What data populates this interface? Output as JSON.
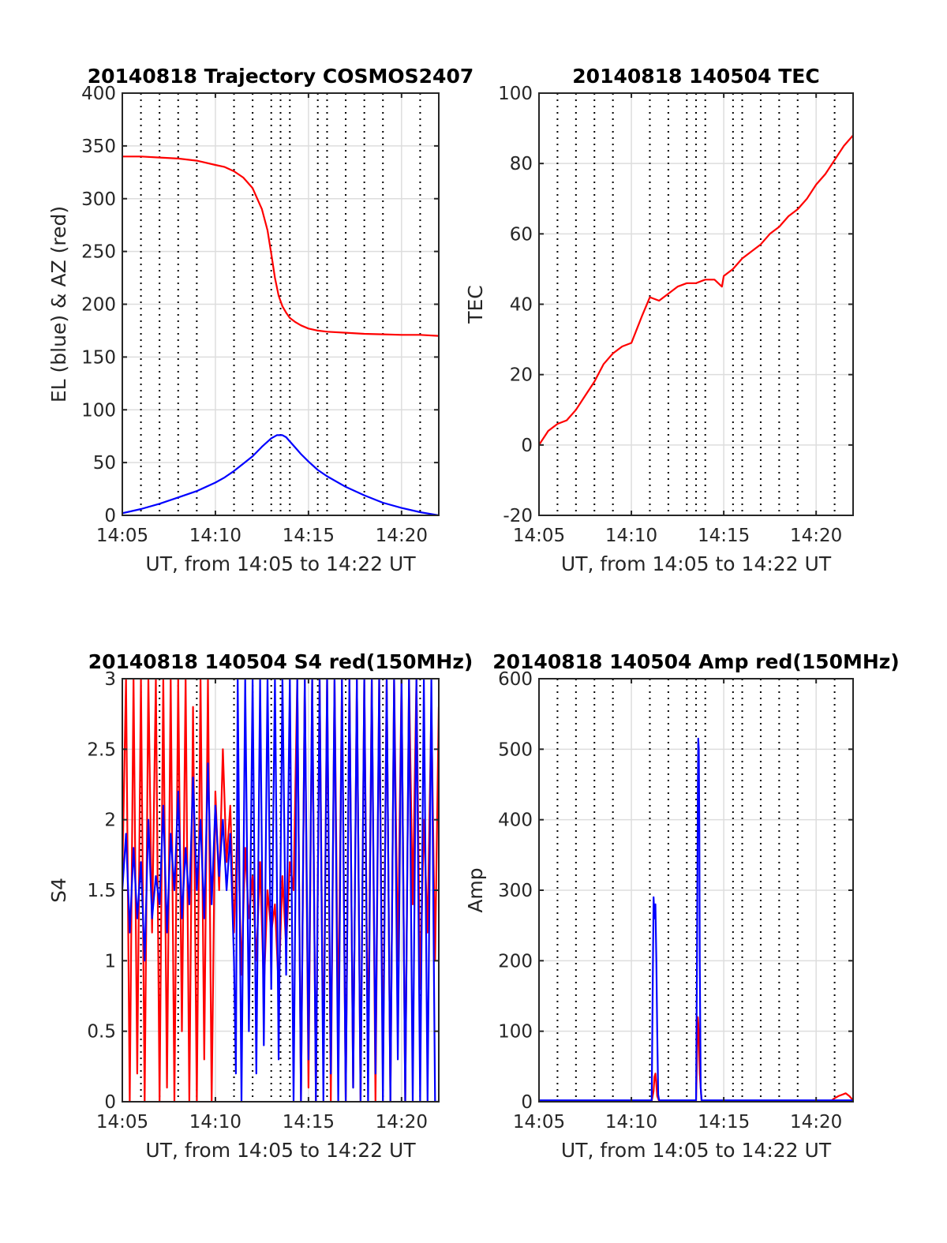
{
  "figure": {
    "colors": {
      "az_red": "#ff0000",
      "el_blue": "#0000ff",
      "grid": "#dddddd",
      "vline": "#000000",
      "axis": "#262626"
    }
  },
  "chart_data": [
    {
      "id": "trajectory",
      "type": "line",
      "title": "20140818 Trajectory COSMOS2407",
      "xlabel": "UT, from 14:05 to 14:22 UT",
      "ylabel": "EL (blue) & AZ (red)",
      "x_unit": "minutes after 14:00 UT",
      "xlim": [
        5,
        22
      ],
      "ylim": [
        0,
        400
      ],
      "yticks": [
        0,
        50,
        100,
        150,
        200,
        250,
        300,
        350,
        400
      ],
      "xticks": [
        5,
        10,
        15,
        20
      ],
      "xticklabels": [
        "14:05",
        "14:10",
        "14:15",
        "14:20"
      ],
      "grid": true,
      "dotted_verticals": [
        6,
        7,
        8,
        9,
        11,
        12,
        13,
        13.5,
        14,
        15.5,
        16,
        17,
        18,
        19,
        21
      ],
      "series": [
        {
          "color": "#ff0000",
          "x": [
            5,
            6,
            7,
            8,
            9,
            10,
            10.5,
            11,
            11.5,
            12,
            12.5,
            12.8,
            13,
            13.2,
            13.4,
            13.6,
            13.8,
            14,
            14.3,
            14.6,
            15,
            15.5,
            16,
            17,
            18,
            19,
            20,
            21,
            22
          ],
          "values": [
            340,
            340,
            339,
            338,
            336,
            332,
            330,
            326,
            320,
            310,
            290,
            270,
            248,
            225,
            208,
            198,
            192,
            187,
            183,
            180,
            177,
            175,
            174,
            173,
            172,
            171.5,
            171,
            171,
            170
          ]
        },
        {
          "color": "#0000ff",
          "x": [
            5,
            6,
            7,
            8,
            9,
            10,
            10.5,
            11,
            11.5,
            12,
            12.5,
            13,
            13.3,
            13.6,
            13.8,
            14,
            14.3,
            14.6,
            15,
            15.5,
            16,
            17,
            18,
            19,
            20,
            21,
            22
          ],
          "values": [
            2,
            6,
            11,
            17,
            23,
            31,
            36,
            42,
            49,
            56,
            65,
            73,
            76,
            76,
            74,
            70,
            64,
            58,
            51,
            43,
            37,
            27,
            19,
            12,
            7,
            3,
            0
          ]
        }
      ]
    },
    {
      "id": "tec",
      "type": "line",
      "title": "20140818 140504 TEC",
      "xlabel": "UT, from 14:05 to 14:22 UT",
      "ylabel": "TEC",
      "x_unit": "minutes after 14:00 UT",
      "xlim": [
        5,
        22
      ],
      "ylim": [
        -20,
        100
      ],
      "yticks": [
        -20,
        0,
        20,
        40,
        60,
        80,
        100
      ],
      "xticks": [
        5,
        10,
        15,
        20
      ],
      "xticklabels": [
        "14:05",
        "14:10",
        "14:15",
        "14:20"
      ],
      "grid": true,
      "dotted_verticals": [
        6,
        7,
        8,
        9,
        11,
        12,
        13,
        13.5,
        14,
        15.5,
        16,
        17,
        18,
        19,
        21
      ],
      "series": [
        {
          "color": "#ff0000",
          "x": [
            5,
            5.5,
            6,
            6.5,
            7,
            7.5,
            8,
            8.5,
            9,
            9.5,
            10,
            10.3,
            10.6,
            11,
            11.5,
            12,
            12.5,
            13,
            13.5,
            14,
            14.5,
            14.9,
            15,
            15.5,
            16,
            16.5,
            17,
            17.5,
            18,
            18.5,
            19,
            19.5,
            20,
            20.5,
            21,
            21.5,
            22
          ],
          "values": [
            0,
            4,
            6,
            7,
            10,
            14,
            18,
            23,
            26,
            28,
            29,
            33,
            37,
            42,
            41,
            43,
            45,
            46,
            46,
            47,
            47,
            45,
            48,
            50,
            53,
            55,
            57,
            60,
            62,
            65,
            67,
            70,
            74,
            77,
            81,
            85,
            88
          ]
        }
      ]
    },
    {
      "id": "s4",
      "type": "line",
      "title": "20140818 140504 S4 red(150MHz)",
      "xlabel": "UT, from 14:05 to 14:22 UT",
      "ylabel": "S4",
      "x_unit": "minutes after 14:00 UT",
      "xlim": [
        5,
        22
      ],
      "ylim": [
        0,
        3
      ],
      "yticks": [
        0,
        0.5,
        1,
        1.5,
        2,
        2.5,
        3
      ],
      "xticks": [
        5,
        10,
        15,
        20
      ],
      "xticklabels": [
        "14:05",
        "14:10",
        "14:15",
        "14:20"
      ],
      "grid": true,
      "dotted_verticals": [
        6,
        7,
        8,
        9,
        11,
        12,
        13,
        13.5,
        14,
        15.5,
        16,
        17,
        18,
        19,
        21
      ],
      "series": [
        {
          "color": "#ff0000",
          "x": [
            5,
            5.2,
            5.4,
            5.6,
            5.8,
            6,
            6.2,
            6.4,
            6.6,
            6.8,
            7,
            7.2,
            7.4,
            7.6,
            7.8,
            8,
            8.2,
            8.4,
            8.6,
            8.8,
            9,
            9.2,
            9.4,
            9.6,
            9.8,
            10,
            10.2,
            10.4,
            10.6,
            10.8,
            11,
            11.2,
            11.4,
            11.6,
            11.8,
            12,
            12.2,
            12.4,
            12.6,
            12.8,
            13,
            13.2,
            13.4,
            13.6,
            13.8,
            14,
            14.2,
            14.4,
            14.6,
            14.8,
            15,
            15.2,
            15.4,
            15.6,
            15.8,
            16,
            16.2,
            16.4,
            16.6,
            16.8,
            17,
            17.2,
            17.4,
            17.6,
            17.8,
            18,
            18.2,
            18.4,
            18.6,
            18.8,
            19,
            19.2,
            19.4,
            19.6,
            19.8,
            20,
            20.2,
            20.4,
            20.6,
            20.8,
            21,
            21.2,
            21.4,
            21.6,
            21.8,
            22
          ],
          "values": [
            1.6,
            3,
            0,
            3,
            0.2,
            3,
            0,
            3,
            1.2,
            3,
            0,
            3,
            0.1,
            3,
            0,
            3,
            0.5,
            3,
            0,
            2.8,
            0,
            3,
            0.3,
            3,
            0,
            2.2,
            1.5,
            2.5,
            1.7,
            2.1,
            1.2,
            2.0,
            0.9,
            1.8,
            1.3,
            1.6,
            1.0,
            1.7,
            0.8,
            1.5,
            1.2,
            1.4,
            0.8,
            1.6,
            1.1,
            1.7,
            1.5,
            3,
            0,
            3,
            0.1,
            3,
            0,
            3,
            0.2,
            3,
            0,
            3,
            0.5,
            3,
            0,
            3,
            0.1,
            3,
            0,
            3,
            0.3,
            3,
            0,
            3,
            0.2,
            3,
            0,
            3,
            1.0,
            3,
            0,
            3,
            1.4,
            3,
            0.8,
            2.0,
            1.2,
            2.8,
            1.0,
            2.8
          ]
        },
        {
          "color": "#0000ff",
          "x": [
            5,
            5.2,
            5.4,
            5.6,
            5.8,
            6,
            6.2,
            6.4,
            6.6,
            6.8,
            7,
            7.2,
            7.4,
            7.6,
            7.8,
            8,
            8.2,
            8.4,
            8.6,
            8.8,
            9,
            9.2,
            9.4,
            9.6,
            9.8,
            10,
            10.2,
            10.4,
            10.6,
            10.8,
            11,
            11.1,
            11.2,
            11.4,
            11.6,
            11.8,
            12,
            12.2,
            12.4,
            12.6,
            12.8,
            13,
            13.2,
            13.4,
            13.6,
            13.8,
            14,
            14.2,
            14.4,
            14.6,
            14.8,
            15,
            15.2,
            15.4,
            15.6,
            15.8,
            16,
            16.2,
            16.4,
            16.6,
            16.8,
            17,
            17.2,
            17.4,
            17.6,
            17.8,
            18,
            18.2,
            18.4,
            18.6,
            18.8,
            19,
            19.2,
            19.4,
            19.6,
            19.8,
            20,
            20.2,
            20.4,
            20.6,
            20.8,
            21,
            21.2,
            21.4,
            21.6,
            21.8,
            22
          ],
          "values": [
            1.5,
            1.9,
            1.2,
            1.8,
            1.3,
            1.7,
            1.0,
            2.0,
            1.3,
            1.6,
            1.4,
            2.1,
            1.2,
            1.9,
            1.5,
            2.2,
            1.3,
            1.8,
            1.4,
            2.3,
            1.5,
            2.0,
            1.3,
            2.4,
            1.4,
            2.1,
            1.6,
            2.0,
            1.5,
            1.9,
            1.0,
            0.2,
            3,
            0,
            3,
            0.5,
            3,
            0.2,
            3,
            0.4,
            3,
            0.8,
            3,
            0.3,
            3,
            0.9,
            3,
            0,
            3,
            0,
            3,
            0.3,
            3,
            0,
            3,
            0,
            3,
            0.2,
            3,
            0,
            3,
            0,
            3,
            0.1,
            3,
            0,
            3,
            0,
            3,
            0.2,
            3,
            0,
            3,
            0,
            3,
            0.3,
            3,
            0,
            3,
            0,
            3,
            0,
            3,
            0,
            3,
            0,
            0
          ]
        }
      ]
    },
    {
      "id": "amp",
      "type": "line",
      "title": "20140818 140504 Amp red(150MHz)",
      "xlabel": "UT, from 14:05 to 14:22 UT",
      "ylabel": "Amp",
      "x_unit": "minutes after 14:00 UT",
      "xlim": [
        5,
        22
      ],
      "ylim": [
        0,
        600
      ],
      "yticks": [
        0,
        100,
        200,
        300,
        400,
        500,
        600
      ],
      "xticks": [
        5,
        10,
        15,
        20
      ],
      "xticklabels": [
        "14:05",
        "14:10",
        "14:15",
        "14:20"
      ],
      "grid": true,
      "dotted_verticals": [
        6,
        7,
        8,
        9,
        11,
        12,
        13,
        13.5,
        14,
        15.5,
        16,
        17,
        18,
        19,
        21
      ],
      "series": [
        {
          "color": "#ff0000",
          "x": [
            5,
            11.1,
            11.2,
            11.25,
            11.3,
            11.35,
            11.4,
            11.5,
            13.5,
            13.55,
            13.6,
            13.65,
            13.7,
            13.8,
            20.8,
            21.0,
            21.2,
            21.4,
            21.6,
            21.8,
            22
          ],
          "values": [
            1,
            1,
            15,
            35,
            40,
            25,
            8,
            1,
            1,
            60,
            120,
            100,
            40,
            1,
            1,
            5,
            8,
            10,
            12,
            8,
            2
          ]
        },
        {
          "color": "#0000ff",
          "x": [
            5,
            11.1,
            11.15,
            11.2,
            11.25,
            11.3,
            11.35,
            11.4,
            11.45,
            11.5,
            13.5,
            13.55,
            13.6,
            13.62,
            13.65,
            13.68,
            13.7,
            13.75,
            13.8,
            22
          ],
          "values": [
            2,
            2,
            150,
            290,
            260,
            280,
            200,
            100,
            10,
            2,
            2,
            200,
            450,
            515,
            500,
            380,
            200,
            20,
            2,
            2
          ]
        }
      ]
    }
  ]
}
